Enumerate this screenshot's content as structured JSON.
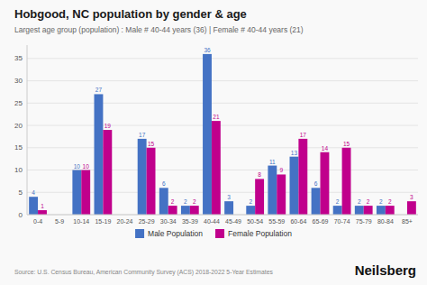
{
  "chart_data": {
    "type": "bar",
    "title": "Hobgood, NC population by gender & age",
    "subtitle": "Largest age group (population) : Male # 40-44 years (36) | Female # 40-44 years (21)",
    "source": "Source: U.S. Census Bureau, American Community Survey (ACS) 2018-2022 5-Year Estimates",
    "brand": "Neilsberg",
    "categories": [
      "0-4",
      "5-9",
      "10-14",
      "15-19",
      "20-24",
      "25-29",
      "30-34",
      "35-39",
      "40-44",
      "45-49",
      "50-54",
      "55-59",
      "60-64",
      "65-69",
      "70-74",
      "75-79",
      "80-84",
      "85+"
    ],
    "series": [
      {
        "name": "Male Population",
        "color": "#4472C4",
        "values": [
          4,
          0,
          10,
          27,
          0,
          17,
          6,
          2,
          36,
          3,
          2,
          11,
          13,
          6,
          2,
          2,
          2,
          0
        ]
      },
      {
        "name": "Female Population",
        "color": "#C0008C",
        "values": [
          1,
          0,
          10,
          19,
          0,
          15,
          2,
          2,
          21,
          0,
          8,
          9,
          17,
          14,
          15,
          2,
          2,
          3
        ]
      }
    ],
    "ylim": [
      0,
      38
    ],
    "yticks": [
      0,
      5,
      10,
      15,
      20,
      25,
      30,
      35
    ],
    "grid": true,
    "data_labels": true,
    "legend": "bottom"
  }
}
